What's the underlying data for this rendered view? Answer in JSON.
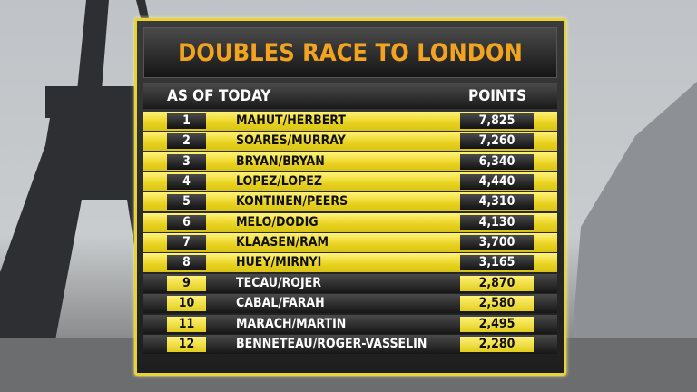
{
  "title": "DOUBLES RACE TO LONDON",
  "header": {
    "left": "AS OF TODAY",
    "right": "POINTS"
  },
  "colors": {
    "accent_yellow": "#e8d21e",
    "title_orange": "#f2a421",
    "dark": "#1e1e1e"
  },
  "rows": [
    {
      "rank": "1",
      "team": "MAHUT/HERBERT",
      "points": "7,825"
    },
    {
      "rank": "2",
      "team": "SOARES/MURRAY",
      "points": "7,260"
    },
    {
      "rank": "3",
      "team": "BRYAN/BRYAN",
      "points": "6,340"
    },
    {
      "rank": "4",
      "team": "LOPEZ/LOPEZ",
      "points": "4,440"
    },
    {
      "rank": "5",
      "team": "KONTINEN/PEERS",
      "points": "4,310"
    },
    {
      "rank": "6",
      "team": "MELO/DODIG",
      "points": "4,130"
    },
    {
      "rank": "7",
      "team": "KLAASEN/RAM",
      "points": "3,700"
    },
    {
      "rank": "8",
      "team": "HUEY/MIRNYI",
      "points": "3,165"
    },
    {
      "rank": "9",
      "team": "TECAU/ROJER",
      "points": "2,870"
    },
    {
      "rank": "10",
      "team": "CABAL/FARAH",
      "points": "2,580"
    },
    {
      "rank": "11",
      "team": "MARACH/MARTIN",
      "points": "2,495"
    },
    {
      "rank": "12",
      "team": "BENNETEAU/ROGER-VASSELIN",
      "points": "2,280"
    }
  ]
}
